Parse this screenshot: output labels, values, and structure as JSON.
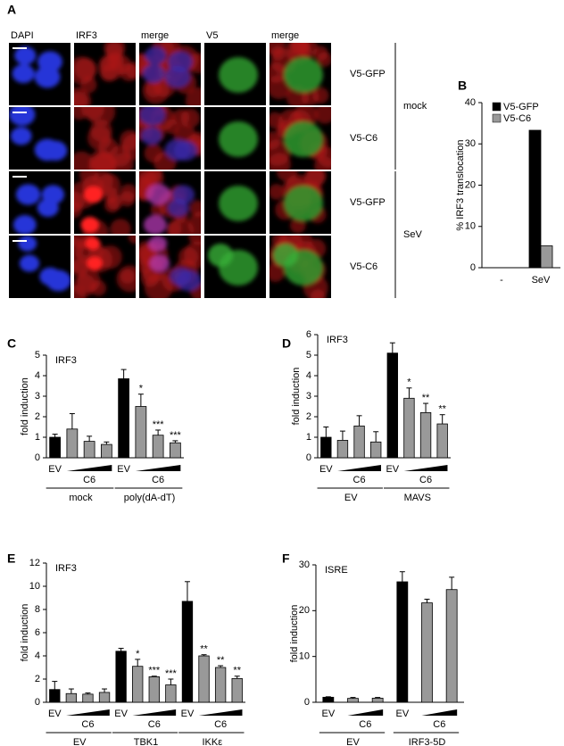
{
  "panel_labels": [
    "A",
    "B",
    "C",
    "D",
    "E",
    "F"
  ],
  "panel_a": {
    "columns": [
      "DAPI",
      "IRF3",
      "merge",
      "V5",
      "merge"
    ],
    "rows": [
      "V5-GFP",
      "V5-C6",
      "V5-GFP",
      "V5-C6"
    ],
    "conditions": [
      "mock",
      "SeV"
    ]
  },
  "chart_data": [
    {
      "type": "bar",
      "ylabel": "% IRF3 translocation",
      "categories": [
        "-",
        "SeV"
      ],
      "series": [
        {
          "name": "V5-GFP",
          "color": "#000000",
          "values": [
            0,
            33.3
          ]
        },
        {
          "name": "V5-C6",
          "color": "#999999",
          "values": [
            0,
            5.3
          ]
        }
      ],
      "ylim": [
        0,
        40
      ],
      "yticks": [
        0,
        10,
        20,
        30,
        40
      ],
      "legend": "top-left"
    },
    {
      "type": "bar",
      "inner_label": "IRF3",
      "ylabel": "fold induction",
      "values": [
        1,
        1.4,
        0.8,
        0.65,
        3.85,
        2.5,
        1.1,
        0.73
      ],
      "errors": [
        0.15,
        0.75,
        0.25,
        0.12,
        0.45,
        0.6,
        0.25,
        0.1
      ],
      "colors": [
        "#000000",
        "#999999",
        "#999999",
        "#999999",
        "#000000",
        "#999999",
        "#999999",
        "#999999"
      ],
      "annotations": [
        null,
        null,
        null,
        null,
        null,
        "*",
        "***",
        "***"
      ],
      "groups": [
        {
          "name": "mock",
          "labels": [
            "EV",
            "C6"
          ]
        },
        {
          "name": "poly(dA-dT)",
          "labels": [
            "EV",
            "C6"
          ]
        }
      ],
      "ylim": [
        0,
        5
      ],
      "yticks": [
        0,
        1,
        2,
        3,
        4,
        5
      ]
    },
    {
      "type": "bar",
      "inner_label": "IRF3",
      "ylabel": "fold induction",
      "values": [
        1,
        0.85,
        1.55,
        0.77,
        5.1,
        2.9,
        2.2,
        1.65
      ],
      "errors": [
        0.5,
        0.45,
        0.5,
        0.5,
        0.5,
        0.5,
        0.45,
        0.45
      ],
      "colors": [
        "#000000",
        "#999999",
        "#999999",
        "#999999",
        "#000000",
        "#999999",
        "#999999",
        "#999999"
      ],
      "annotations": [
        null,
        null,
        null,
        null,
        null,
        "*",
        "**",
        "**"
      ],
      "groups": [
        {
          "name": "EV",
          "labels": [
            "EV",
            "C6"
          ]
        },
        {
          "name": "MAVS",
          "labels": [
            "EV",
            "C6"
          ]
        }
      ],
      "ylim": [
        0,
        6
      ],
      "yticks": [
        0,
        1,
        2,
        3,
        4,
        5,
        6
      ]
    },
    {
      "type": "bar",
      "inner_label": "IRF3",
      "ylabel": "fold induction",
      "values": [
        1.1,
        0.75,
        0.7,
        0.85,
        4.4,
        3.1,
        2.2,
        1.5,
        8.7,
        4.0,
        3.0,
        2.05
      ],
      "errors": [
        0.7,
        0.4,
        0.1,
        0.3,
        0.25,
        0.6,
        0.05,
        0.5,
        1.7,
        0.1,
        0.15,
        0.2
      ],
      "colors": [
        "#000000",
        "#999999",
        "#999999",
        "#999999",
        "#000000",
        "#999999",
        "#999999",
        "#999999",
        "#000000",
        "#999999",
        "#999999",
        "#999999"
      ],
      "annotations": [
        null,
        null,
        null,
        null,
        null,
        "*",
        "***",
        "***",
        null,
        "**",
        "**",
        "**"
      ],
      "groups": [
        {
          "name": "EV",
          "labels": [
            "EV",
            "C6"
          ]
        },
        {
          "name": "TBK1",
          "labels": [
            "EV",
            "C6"
          ]
        },
        {
          "name": "IKKε",
          "labels": [
            "EV",
            "C6"
          ]
        }
      ],
      "ylim": [
        0,
        12
      ],
      "yticks": [
        0,
        2,
        4,
        6,
        8,
        10,
        12
      ]
    },
    {
      "type": "bar",
      "inner_label": "ISRE",
      "ylabel": "fold induction",
      "values": [
        1.1,
        0.85,
        0.9,
        26.3,
        21.7,
        24.6
      ],
      "errors": [
        0.1,
        0.2,
        0.15,
        2.2,
        0.8,
        2.7
      ],
      "colors": [
        "#000000",
        "#999999",
        "#999999",
        "#000000",
        "#999999",
        "#999999"
      ],
      "annotations": [
        null,
        null,
        null,
        null,
        null,
        null
      ],
      "groups": [
        {
          "name": "EV",
          "labels": [
            "EV",
            "C6"
          ]
        },
        {
          "name": "IRF3-5D",
          "labels": [
            "EV",
            "C6"
          ]
        }
      ],
      "ylim": [
        0,
        30
      ],
      "yticks": [
        0,
        10,
        20,
        30
      ]
    }
  ]
}
